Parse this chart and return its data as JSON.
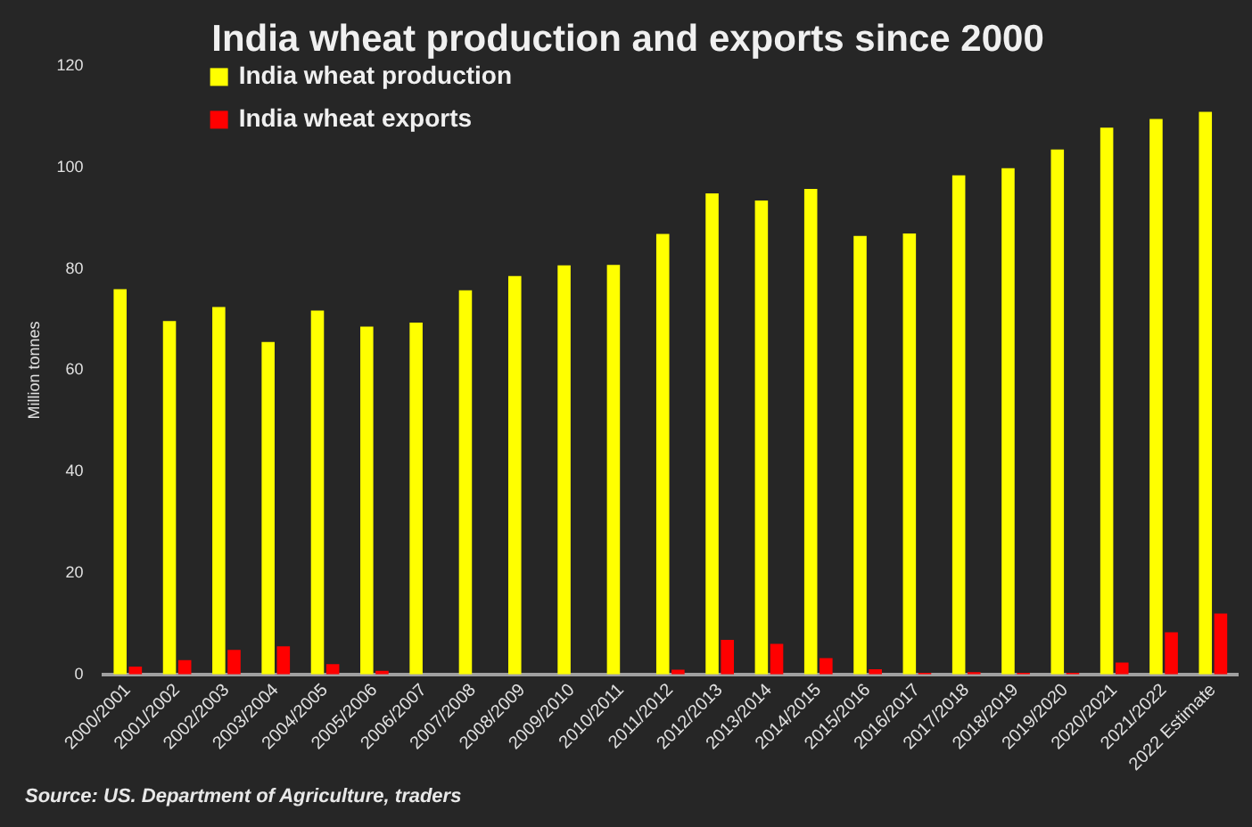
{
  "chart_data": {
    "type": "bar",
    "title": "India wheat production and exports since 2000",
    "ylabel": "Million tonnes",
    "categories": [
      "2000/2001",
      "2001/2002",
      "2002/2003",
      "2003/2004",
      "2004/2005",
      "2005/2006",
      "2006/2007",
      "2007/2008",
      "2008/2009",
      "2009/2010",
      "2010/2011",
      "2011/2012",
      "2012/2013",
      "2013/2014",
      "2014/2015",
      "2015/2016",
      "2016/2017",
      "2017/2018",
      "2018/2019",
      "2019/2020",
      "2020/2021",
      "2021/2022",
      "2022 Estimate"
    ],
    "series": [
      {
        "name": "India wheat production",
        "color": "#ffff00",
        "values": [
          76,
          69.7,
          72.5,
          65.6,
          71.8,
          68.6,
          69.4,
          75.8,
          78.6,
          80.7,
          80.8,
          86.9,
          94.9,
          93.5,
          95.8,
          86.5,
          87,
          98.5,
          99.9,
          103.6,
          107.9,
          109.6,
          111
        ]
      },
      {
        "name": "India wheat exports",
        "color": "#ff0000",
        "values": [
          1.5,
          2.8,
          4.8,
          5.5,
          2,
          0.7,
          0,
          0,
          0,
          0,
          0,
          0.9,
          6.8,
          6,
          3.2,
          1,
          0.3,
          0.4,
          0.3,
          0.3,
          2.3,
          8.3,
          12
        ]
      }
    ],
    "ylim": [
      0,
      120
    ],
    "yticks": [
      0,
      20,
      40,
      60,
      80,
      100,
      120
    ],
    "grid": false,
    "legend": "top left",
    "annotations": [
      "Source: US. Department of Agriculture, traders"
    ]
  }
}
